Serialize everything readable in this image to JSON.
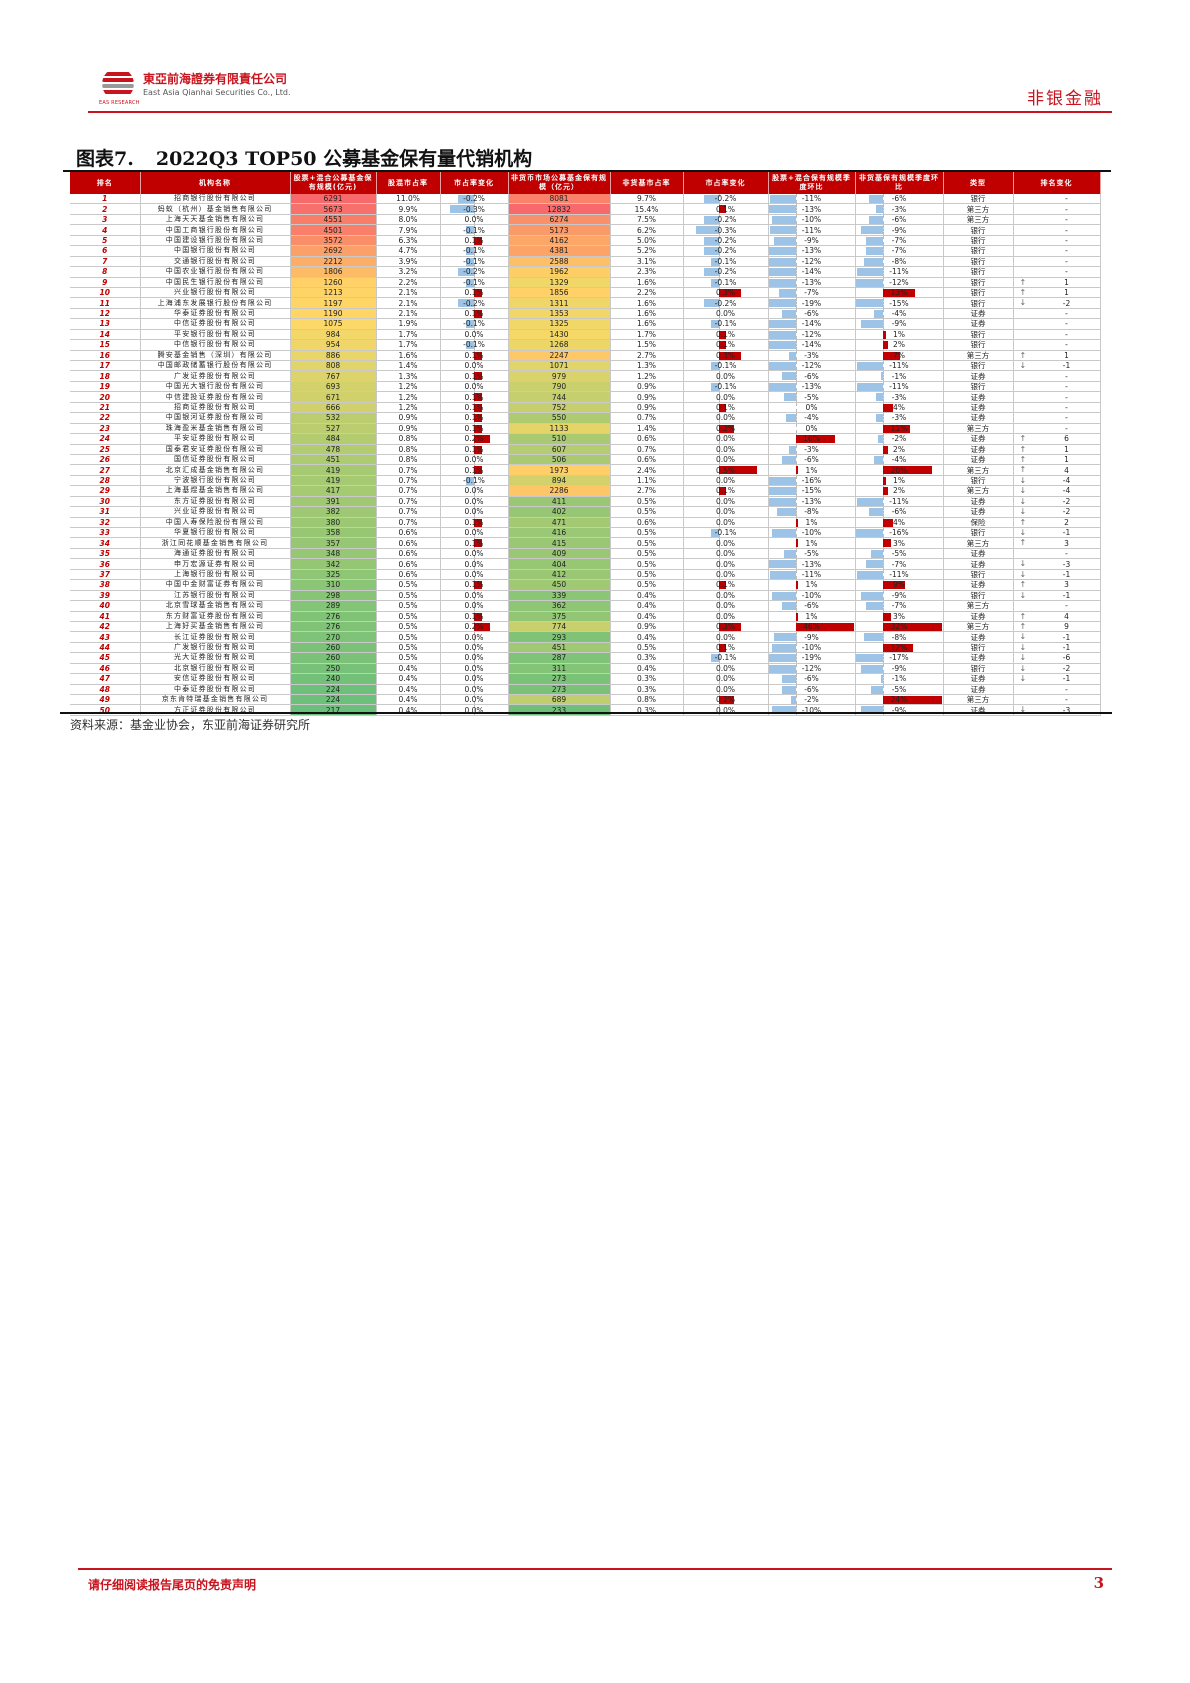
{
  "header": {
    "company_cn": "東亞前海證券有限責任公司",
    "company_en": "East Asia Qianhai Securities Co., Ltd.",
    "logo_sub": "EAS RESEARCH",
    "section": "非银金融"
  },
  "figure": {
    "number": "图表7.",
    "title": "2022Q3 TOP50 公募基金保有量代销机构"
  },
  "table": {
    "columns": [
      "排名",
      "机构名称",
      "股票+混合公募基金保有规模(亿元)",
      "股混市占率",
      "市占率变化",
      "非货币市场公募基金保有规模（亿元）",
      "非货基市占率",
      "市占率变化",
      "股票+混合保有规模季度环比",
      "非货基保有规模季度环比",
      "类型",
      "排名变化"
    ],
    "rows": [
      {
        "rank": "1",
        "name": "招商银行股份有限公司",
        "eq_size": "6291",
        "eq_share": "11.0%",
        "eq_chg": "-0.2%",
        "nm_size": "8081",
        "nm_share": "9.7%",
        "nm_chg": "-0.2%",
        "eq_qoq": "-11%",
        "nm_qoq": "-6%",
        "type": "银行",
        "rank_dir": "",
        "rank_chg": "-"
      },
      {
        "rank": "2",
        "name": "蚂蚁（杭州）基金销售有限公司",
        "eq_size": "5673",
        "eq_share": "9.9%",
        "eq_chg": "-0.3%",
        "nm_size": "12832",
        "nm_share": "15.4%",
        "nm_chg": "0.1%",
        "eq_qoq": "-13%",
        "nm_qoq": "-3%",
        "type": "第三方",
        "rank_dir": "",
        "rank_chg": "-"
      },
      {
        "rank": "3",
        "name": "上海天天基金销售有限公司",
        "eq_size": "4551",
        "eq_share": "8.0%",
        "eq_chg": "0.0%",
        "nm_size": "6274",
        "nm_share": "7.5%",
        "nm_chg": "-0.2%",
        "eq_qoq": "-10%",
        "nm_qoq": "-6%",
        "type": "第三方",
        "rank_dir": "",
        "rank_chg": "-"
      },
      {
        "rank": "4",
        "name": "中国工商银行股份有限公司",
        "eq_size": "4501",
        "eq_share": "7.9%",
        "eq_chg": "-0.1%",
        "nm_size": "5173",
        "nm_share": "6.2%",
        "nm_chg": "-0.3%",
        "eq_qoq": "-11%",
        "nm_qoq": "-9%",
        "type": "银行",
        "rank_dir": "",
        "rank_chg": "-"
      },
      {
        "rank": "5",
        "name": "中国建设银行股份有限公司",
        "eq_size": "3572",
        "eq_share": "6.3%",
        "eq_chg": "0.1%",
        "nm_size": "4162",
        "nm_share": "5.0%",
        "nm_chg": "-0.2%",
        "eq_qoq": "-9%",
        "nm_qoq": "-7%",
        "type": "银行",
        "rank_dir": "",
        "rank_chg": "-"
      },
      {
        "rank": "6",
        "name": "中国银行股份有限公司",
        "eq_size": "2692",
        "eq_share": "4.7%",
        "eq_chg": "-0.1%",
        "nm_size": "4381",
        "nm_share": "5.2%",
        "nm_chg": "-0.2%",
        "eq_qoq": "-13%",
        "nm_qoq": "-7%",
        "type": "银行",
        "rank_dir": "",
        "rank_chg": "-"
      },
      {
        "rank": "7",
        "name": "交通银行股份有限公司",
        "eq_size": "2212",
        "eq_share": "3.9%",
        "eq_chg": "-0.1%",
        "nm_size": "2588",
        "nm_share": "3.1%",
        "nm_chg": "-0.1%",
        "eq_qoq": "-12%",
        "nm_qoq": "-8%",
        "type": "银行",
        "rank_dir": "",
        "rank_chg": "-"
      },
      {
        "rank": "8",
        "name": "中国农业银行股份有限公司",
        "eq_size": "1806",
        "eq_share": "3.2%",
        "eq_chg": "-0.2%",
        "nm_size": "1962",
        "nm_share": "2.3%",
        "nm_chg": "-0.2%",
        "eq_qoq": "-14%",
        "nm_qoq": "-11%",
        "type": "银行",
        "rank_dir": "",
        "rank_chg": "-"
      },
      {
        "rank": "9",
        "name": "中国民生银行股份有限公司",
        "eq_size": "1260",
        "eq_share": "2.2%",
        "eq_chg": "-0.1%",
        "nm_size": "1329",
        "nm_share": "1.6%",
        "nm_chg": "-0.1%",
        "eq_qoq": "-13%",
        "nm_qoq": "-12%",
        "type": "银行",
        "rank_dir": "up",
        "rank_chg": "1"
      },
      {
        "rank": "10",
        "name": "兴业银行股份有限公司",
        "eq_size": "1213",
        "eq_share": "2.1%",
        "eq_chg": "0.1%",
        "nm_size": "1856",
        "nm_share": "2.2%",
        "nm_chg": "0.3%",
        "eq_qoq": "-7%",
        "nm_qoq": "13%",
        "type": "银行",
        "rank_dir": "up",
        "rank_chg": "1"
      },
      {
        "rank": "11",
        "name": "上海浦东发展银行股份有限公司",
        "eq_size": "1197",
        "eq_share": "2.1%",
        "eq_chg": "-0.2%",
        "nm_size": "1311",
        "nm_share": "1.6%",
        "nm_chg": "-0.2%",
        "eq_qoq": "-19%",
        "nm_qoq": "-15%",
        "type": "银行",
        "rank_dir": "down",
        "rank_chg": "-2"
      },
      {
        "rank": "12",
        "name": "华泰证券股份有限公司",
        "eq_size": "1190",
        "eq_share": "2.1%",
        "eq_chg": "0.1%",
        "nm_size": "1353",
        "nm_share": "1.6%",
        "nm_chg": "0.0%",
        "eq_qoq": "-6%",
        "nm_qoq": "-4%",
        "type": "证券",
        "rank_dir": "",
        "rank_chg": "-"
      },
      {
        "rank": "13",
        "name": "中信证券股份有限公司",
        "eq_size": "1075",
        "eq_share": "1.9%",
        "eq_chg": "-0.1%",
        "nm_size": "1325",
        "nm_share": "1.6%",
        "nm_chg": "-0.1%",
        "eq_qoq": "-14%",
        "nm_qoq": "-9%",
        "type": "证券",
        "rank_dir": "",
        "rank_chg": "-"
      },
      {
        "rank": "14",
        "name": "平安银行股份有限公司",
        "eq_size": "984",
        "eq_share": "1.7%",
        "eq_chg": "0.0%",
        "nm_size": "1430",
        "nm_share": "1.7%",
        "nm_chg": "0.1%",
        "eq_qoq": "-12%",
        "nm_qoq": "1%",
        "type": "银行",
        "rank_dir": "",
        "rank_chg": "-"
      },
      {
        "rank": "15",
        "name": "中信银行股份有限公司",
        "eq_size": "954",
        "eq_share": "1.7%",
        "eq_chg": "-0.1%",
        "nm_size": "1268",
        "nm_share": "1.5%",
        "nm_chg": "0.1%",
        "eq_qoq": "-14%",
        "nm_qoq": "2%",
        "type": "银行",
        "rank_dir": "",
        "rank_chg": "-"
      },
      {
        "rank": "16",
        "name": "腾安基金销售（深圳）有限公司",
        "eq_size": "886",
        "eq_share": "1.6%",
        "eq_chg": "0.1%",
        "nm_size": "2247",
        "nm_share": "2.7%",
        "nm_chg": "0.3%",
        "eq_qoq": "-3%",
        "nm_qoq": "7%",
        "type": "第三方",
        "rank_dir": "up",
        "rank_chg": "1"
      },
      {
        "rank": "17",
        "name": "中国邮政储蓄银行股份有限公司",
        "eq_size": "808",
        "eq_share": "1.4%",
        "eq_chg": "0.0%",
        "nm_size": "1071",
        "nm_share": "1.3%",
        "nm_chg": "-0.1%",
        "eq_qoq": "-12%",
        "nm_qoq": "-11%",
        "type": "银行",
        "rank_dir": "down",
        "rank_chg": "-1"
      },
      {
        "rank": "18",
        "name": "广发证券股份有限公司",
        "eq_size": "767",
        "eq_share": "1.3%",
        "eq_chg": "0.1%",
        "nm_size": "979",
        "nm_share": "1.2%",
        "nm_chg": "0.0%",
        "eq_qoq": "-6%",
        "nm_qoq": "-1%",
        "type": "证券",
        "rank_dir": "",
        "rank_chg": "-"
      },
      {
        "rank": "19",
        "name": "中国光大银行股份有限公司",
        "eq_size": "693",
        "eq_share": "1.2%",
        "eq_chg": "0.0%",
        "nm_size": "790",
        "nm_share": "0.9%",
        "nm_chg": "-0.1%",
        "eq_qoq": "-13%",
        "nm_qoq": "-11%",
        "type": "银行",
        "rank_dir": "",
        "rank_chg": "-"
      },
      {
        "rank": "20",
        "name": "中信建投证券股份有限公司",
        "eq_size": "671",
        "eq_share": "1.2%",
        "eq_chg": "0.1%",
        "nm_size": "744",
        "nm_share": "0.9%",
        "nm_chg": "0.0%",
        "eq_qoq": "-5%",
        "nm_qoq": "-3%",
        "type": "证券",
        "rank_dir": "",
        "rank_chg": "-"
      },
      {
        "rank": "21",
        "name": "招商证券股份有限公司",
        "eq_size": "666",
        "eq_share": "1.2%",
        "eq_chg": "0.1%",
        "nm_size": "752",
        "nm_share": "0.9%",
        "nm_chg": "0.1%",
        "eq_qoq": "0%",
        "nm_qoq": "4%",
        "type": "证券",
        "rank_dir": "",
        "rank_chg": "-"
      },
      {
        "rank": "22",
        "name": "中国银河证券股份有限公司",
        "eq_size": "532",
        "eq_share": "0.9%",
        "eq_chg": "0.1%",
        "nm_size": "550",
        "nm_share": "0.7%",
        "nm_chg": "0.0%",
        "eq_qoq": "-4%",
        "nm_qoq": "-3%",
        "type": "证券",
        "rank_dir": "",
        "rank_chg": "-"
      },
      {
        "rank": "23",
        "name": "珠海盈米基金销售有限公司",
        "eq_size": "527",
        "eq_share": "0.9%",
        "eq_chg": "0.1%",
        "nm_size": "1133",
        "nm_share": "1.4%",
        "nm_chg": "0.2%",
        "eq_qoq": "0%",
        "nm_qoq": "11%",
        "type": "第三方",
        "rank_dir": "",
        "rank_chg": "-"
      },
      {
        "rank": "24",
        "name": "平安证券股份有限公司",
        "eq_size": "484",
        "eq_share": "0.8%",
        "eq_chg": "0.2%",
        "nm_size": "510",
        "nm_share": "0.6%",
        "nm_chg": "0.0%",
        "eq_qoq": "16%",
        "nm_qoq": "-2%",
        "type": "证券",
        "rank_dir": "up",
        "rank_chg": "6"
      },
      {
        "rank": "25",
        "name": "国泰君安证券股份有限公司",
        "eq_size": "478",
        "eq_share": "0.8%",
        "eq_chg": "0.1%",
        "nm_size": "607",
        "nm_share": "0.7%",
        "nm_chg": "0.0%",
        "eq_qoq": "-3%",
        "nm_qoq": "2%",
        "type": "证券",
        "rank_dir": "up",
        "rank_chg": "1"
      },
      {
        "rank": "26",
        "name": "国信证券股份有限公司",
        "eq_size": "451",
        "eq_share": "0.8%",
        "eq_chg": "0.0%",
        "nm_size": "506",
        "nm_share": "0.6%",
        "nm_chg": "0.0%",
        "eq_qoq": "-6%",
        "nm_qoq": "-4%",
        "type": "证券",
        "rank_dir": "up",
        "rank_chg": "1"
      },
      {
        "rank": "27",
        "name": "北京汇成基金销售有限公司",
        "eq_size": "419",
        "eq_share": "0.7%",
        "eq_chg": "0.1%",
        "nm_size": "1973",
        "nm_share": "2.4%",
        "nm_chg": "0.5%",
        "eq_qoq": "1%",
        "nm_qoq": "20%",
        "type": "第三方",
        "rank_dir": "up",
        "rank_chg": "4"
      },
      {
        "rank": "28",
        "name": "宁波银行股份有限公司",
        "eq_size": "419",
        "eq_share": "0.7%",
        "eq_chg": "-0.1%",
        "nm_size": "894",
        "nm_share": "1.1%",
        "nm_chg": "0.0%",
        "eq_qoq": "-16%",
        "nm_qoq": "1%",
        "type": "银行",
        "rank_dir": "down",
        "rank_chg": "-4"
      },
      {
        "rank": "29",
        "name": "上海基煜基金销售有限公司",
        "eq_size": "417",
        "eq_share": "0.7%",
        "eq_chg": "0.0%",
        "nm_size": "2286",
        "nm_share": "2.7%",
        "nm_chg": "0.1%",
        "eq_qoq": "-15%",
        "nm_qoq": "2%",
        "type": "第三方",
        "rank_dir": "down",
        "rank_chg": "-4"
      },
      {
        "rank": "30",
        "name": "东方证券股份有限公司",
        "eq_size": "391",
        "eq_share": "0.7%",
        "eq_chg": "0.0%",
        "nm_size": "411",
        "nm_share": "0.5%",
        "nm_chg": "0.0%",
        "eq_qoq": "-13%",
        "nm_qoq": "-11%",
        "type": "证券",
        "rank_dir": "down",
        "rank_chg": "-2"
      },
      {
        "rank": "31",
        "name": "兴业证券股份有限公司",
        "eq_size": "382",
        "eq_share": "0.7%",
        "eq_chg": "0.0%",
        "nm_size": "402",
        "nm_share": "0.5%",
        "nm_chg": "0.0%",
        "eq_qoq": "-8%",
        "nm_qoq": "-6%",
        "type": "证券",
        "rank_dir": "down",
        "rank_chg": "-2"
      },
      {
        "rank": "32",
        "name": "中国人寿保险股份有限公司",
        "eq_size": "380",
        "eq_share": "0.7%",
        "eq_chg": "0.1%",
        "nm_size": "471",
        "nm_share": "0.6%",
        "nm_chg": "0.0%",
        "eq_qoq": "1%",
        "nm_qoq": "4%",
        "type": "保险",
        "rank_dir": "up",
        "rank_chg": "2"
      },
      {
        "rank": "33",
        "name": "华夏银行股份有限公司",
        "eq_size": "358",
        "eq_share": "0.6%",
        "eq_chg": "0.0%",
        "nm_size": "416",
        "nm_share": "0.5%",
        "nm_chg": "-0.1%",
        "eq_qoq": "-10%",
        "nm_qoq": "-16%",
        "type": "银行",
        "rank_dir": "down",
        "rank_chg": "-1"
      },
      {
        "rank": "34",
        "name": "浙江同花顺基金销售有限公司",
        "eq_size": "357",
        "eq_share": "0.6%",
        "eq_chg": "0.1%",
        "nm_size": "415",
        "nm_share": "0.5%",
        "nm_chg": "0.0%",
        "eq_qoq": "1%",
        "nm_qoq": "3%",
        "type": "第三方",
        "rank_dir": "up",
        "rank_chg": "3"
      },
      {
        "rank": "35",
        "name": "海通证券股份有限公司",
        "eq_size": "348",
        "eq_share": "0.6%",
        "eq_chg": "0.0%",
        "nm_size": "409",
        "nm_share": "0.5%",
        "nm_chg": "0.0%",
        "eq_qoq": "-5%",
        "nm_qoq": "-5%",
        "type": "证券",
        "rank_dir": "",
        "rank_chg": "-"
      },
      {
        "rank": "36",
        "name": "申万宏源证券有限公司",
        "eq_size": "342",
        "eq_share": "0.6%",
        "eq_chg": "0.0%",
        "nm_size": "404",
        "nm_share": "0.5%",
        "nm_chg": "0.0%",
        "eq_qoq": "-13%",
        "nm_qoq": "-7%",
        "type": "证券",
        "rank_dir": "down",
        "rank_chg": "-3"
      },
      {
        "rank": "37",
        "name": "上海银行股份有限公司",
        "eq_size": "325",
        "eq_share": "0.6%",
        "eq_chg": "0.0%",
        "nm_size": "412",
        "nm_share": "0.5%",
        "nm_chg": "0.0%",
        "eq_qoq": "-11%",
        "nm_qoq": "-11%",
        "type": "银行",
        "rank_dir": "down",
        "rank_chg": "-1"
      },
      {
        "rank": "38",
        "name": "中国中金财富证券有限公司",
        "eq_size": "310",
        "eq_share": "0.5%",
        "eq_chg": "0.1%",
        "nm_size": "450",
        "nm_share": "0.5%",
        "nm_chg": "0.1%",
        "eq_qoq": "1%",
        "nm_qoq": "9%",
        "type": "证券",
        "rank_dir": "up",
        "rank_chg": "3"
      },
      {
        "rank": "39",
        "name": "江苏银行股份有限公司",
        "eq_size": "298",
        "eq_share": "0.5%",
        "eq_chg": "0.0%",
        "nm_size": "339",
        "nm_share": "0.4%",
        "nm_chg": "0.0%",
        "eq_qoq": "-10%",
        "nm_qoq": "-9%",
        "type": "银行",
        "rank_dir": "down",
        "rank_chg": "-1"
      },
      {
        "rank": "40",
        "name": "北京雪球基金销售有限公司",
        "eq_size": "289",
        "eq_share": "0.5%",
        "eq_chg": "0.0%",
        "nm_size": "362",
        "nm_share": "0.4%",
        "nm_chg": "0.0%",
        "eq_qoq": "-6%",
        "nm_qoq": "-7%",
        "type": "第三方",
        "rank_dir": "",
        "rank_chg": "-"
      },
      {
        "rank": "41",
        "name": "东方财富证券股份有限公司",
        "eq_size": "276",
        "eq_share": "0.5%",
        "eq_chg": "0.1%",
        "nm_size": "375",
        "nm_share": "0.4%",
        "nm_chg": "0.0%",
        "eq_qoq": "1%",
        "nm_qoq": "3%",
        "type": "证券",
        "rank_dir": "up",
        "rank_chg": "4"
      },
      {
        "rank": "42",
        "name": "上海好买基金销售有限公司",
        "eq_size": "276",
        "eq_share": "0.5%",
        "eq_chg": "0.2%",
        "nm_size": "774",
        "nm_share": "0.9%",
        "nm_chg": "0.3%",
        "eq_qoq": "46%",
        "nm_qoq": "32%",
        "type": "第三方",
        "rank_dir": "up",
        "rank_chg": "9"
      },
      {
        "rank": "43",
        "name": "长江证券股份有限公司",
        "eq_size": "270",
        "eq_share": "0.5%",
        "eq_chg": "0.0%",
        "nm_size": "293",
        "nm_share": "0.4%",
        "nm_chg": "0.0%",
        "eq_qoq": "-9%",
        "nm_qoq": "-8%",
        "type": "证券",
        "rank_dir": "down",
        "rank_chg": "-1"
      },
      {
        "rank": "44",
        "name": "广发银行股份有限公司",
        "eq_size": "260",
        "eq_share": "0.5%",
        "eq_chg": "0.0%",
        "nm_size": "451",
        "nm_share": "0.5%",
        "nm_chg": "0.1%",
        "eq_qoq": "-10%",
        "nm_qoq": "12%",
        "type": "银行",
        "rank_dir": "down",
        "rank_chg": "-1"
      },
      {
        "rank": "45",
        "name": "光大证券股份有限公司",
        "eq_size": "260",
        "eq_share": "0.5%",
        "eq_chg": "0.0%",
        "nm_size": "287",
        "nm_share": "0.3%",
        "nm_chg": "-0.1%",
        "eq_qoq": "-19%",
        "nm_qoq": "-17%",
        "type": "证券",
        "rank_dir": "down",
        "rank_chg": "-6"
      },
      {
        "rank": "46",
        "name": "北京银行股份有限公司",
        "eq_size": "250",
        "eq_share": "0.4%",
        "eq_chg": "0.0%",
        "nm_size": "311",
        "nm_share": "0.4%",
        "nm_chg": "0.0%",
        "eq_qoq": "-12%",
        "nm_qoq": "-9%",
        "type": "银行",
        "rank_dir": "down",
        "rank_chg": "-2"
      },
      {
        "rank": "47",
        "name": "安信证券股份有限公司",
        "eq_size": "240",
        "eq_share": "0.4%",
        "eq_chg": "0.0%",
        "nm_size": "273",
        "nm_share": "0.3%",
        "nm_chg": "0.0%",
        "eq_qoq": "-6%",
        "nm_qoq": "-1%",
        "type": "证券",
        "rank_dir": "down",
        "rank_chg": "-1"
      },
      {
        "rank": "48",
        "name": "中泰证券股份有限公司",
        "eq_size": "224",
        "eq_share": "0.4%",
        "eq_chg": "0.0%",
        "nm_size": "273",
        "nm_share": "0.3%",
        "nm_chg": "0.0%",
        "eq_qoq": "-6%",
        "nm_qoq": "-5%",
        "type": "证券",
        "rank_dir": "",
        "rank_chg": "-"
      },
      {
        "rank": "49",
        "name": "京东肯特瑞基金销售有限公司",
        "eq_size": "224",
        "eq_share": "0.4%",
        "eq_chg": "0.0%",
        "nm_size": "689",
        "nm_share": "0.8%",
        "nm_chg": "0.2%",
        "eq_qoq": "-2%",
        "nm_qoq": "24%",
        "type": "第三方",
        "rank_dir": "",
        "rank_chg": "-"
      },
      {
        "rank": "50",
        "name": "方正证券股份有限公司",
        "eq_size": "217",
        "eq_share": "0.4%",
        "eq_chg": "0.0%",
        "nm_size": "233",
        "nm_share": "0.3%",
        "nm_chg": "0.0%",
        "eq_qoq": "-10%",
        "nm_qoq": "-9%",
        "type": "证券",
        "rank_dir": "down",
        "rank_chg": "-3"
      }
    ]
  },
  "source": "资料来源：基金业协会，东亚前海证券研究所",
  "footer": {
    "disclaimer": "请仔细阅读报告尾页的免责声明",
    "page": "3"
  },
  "colors": {
    "brand_red": "#c8141e",
    "header_red": "#c00000",
    "neg_bar": "#9dc3e6",
    "pos_bar": "#c00000"
  }
}
